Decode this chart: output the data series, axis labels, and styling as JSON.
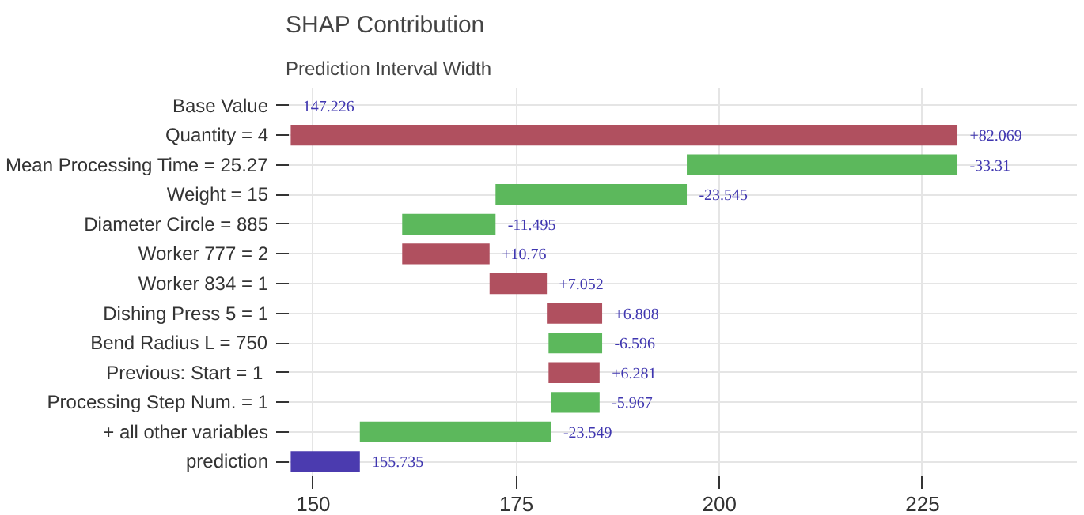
{
  "chart_data": {
    "type": "bar",
    "orientation": "horizontal",
    "title": "SHAP Contribution",
    "subtitle": "Prediction Interval Width",
    "categories": [
      "Base Value",
      "Quantity = 4",
      "Mean Processing Time = 25.27",
      "Weight = 15",
      "Diameter Circle = 885",
      "Worker 777 = 2",
      "Worker 834 = 1",
      "Dishing Press 5 = 1",
      "Bend Radius L = 750",
      "Previous:  Start = 1",
      "Processing Step Num. = 1",
      "+ all other variables",
      "prediction"
    ],
    "values": [
      null,
      82.069,
      -33.31,
      -23.545,
      -11.495,
      10.76,
      7.052,
      6.808,
      -6.596,
      6.281,
      -5.967,
      -23.549,
      8.509
    ],
    "base": [
      null,
      147.226,
      229.295,
      195.985,
      172.44,
      160.945,
      171.705,
      178.757,
      185.565,
      178.969,
      185.25,
      179.283,
      147.226
    ],
    "annotations": [
      {
        "text": "147.226",
        "x": 147.226,
        "y": "Base Value"
      }
    ],
    "value_labels": [
      null,
      "+82.069",
      "-33.31",
      "-23.545",
      "-11.495",
      "+10.76",
      "+7.052",
      "+6.808",
      "-6.596",
      "+6.281",
      "-5.967",
      "-23.549",
      "155.735"
    ],
    "colors": [
      "#b0505f",
      "#b0505f",
      "#5cb85c",
      "#5cb85c",
      "#5cb85c",
      "#b0505f",
      "#b0505f",
      "#b0505f",
      "#5cb85c",
      "#b0505f",
      "#5cb85c",
      "#5cb85c",
      "#4b3baf"
    ],
    "xlim": [
      146.6,
      244
    ],
    "xticks": [
      150,
      175,
      200,
      225
    ],
    "grid": true
  }
}
